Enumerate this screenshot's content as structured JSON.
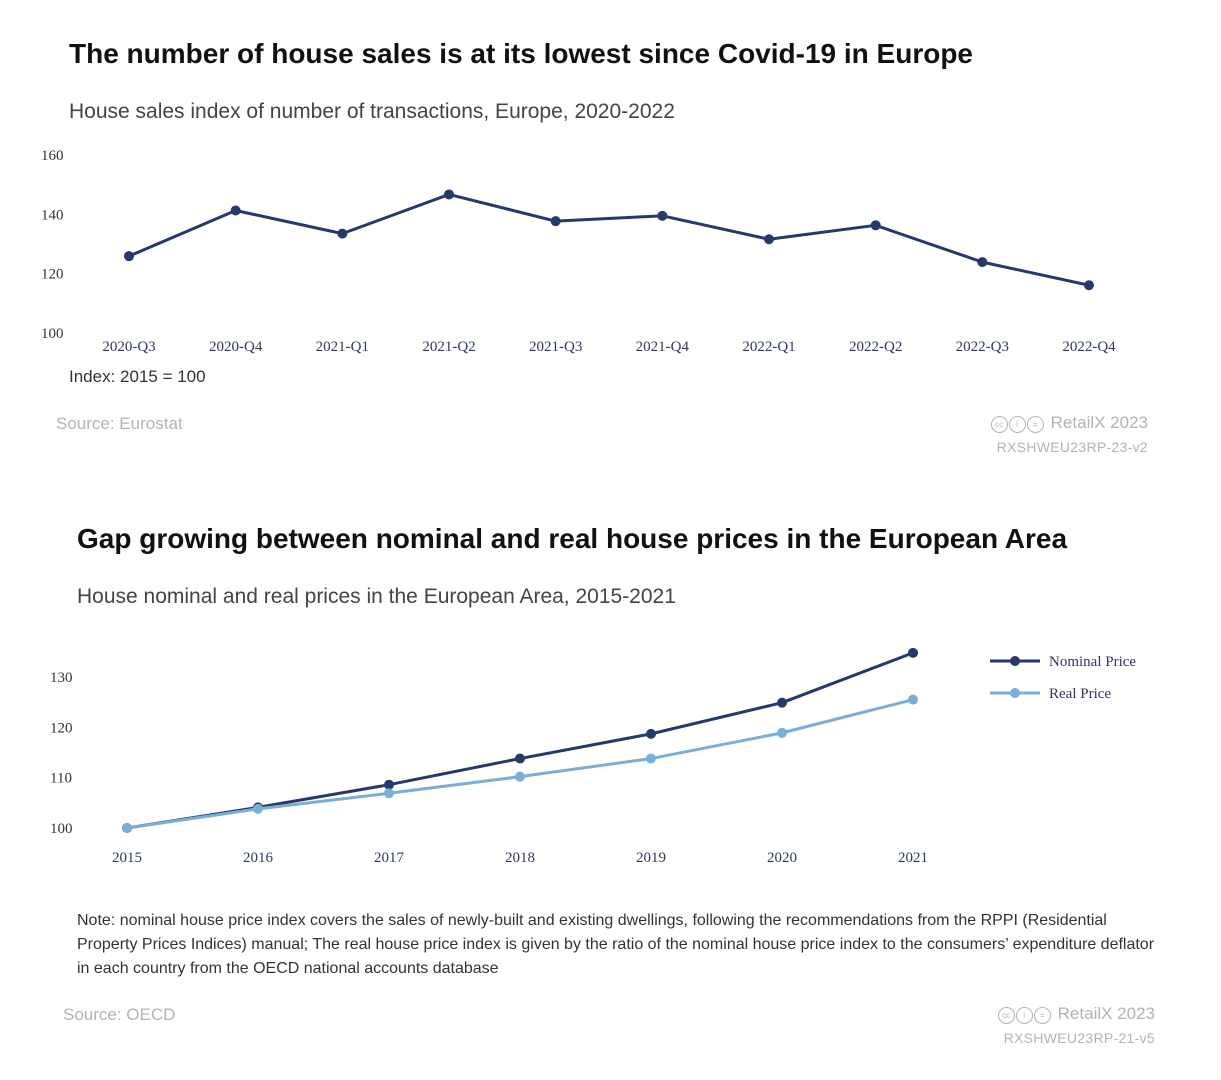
{
  "chart_data": [
    {
      "type": "line",
      "title": "The number of house sales is at its lowest since Covid-19 in Europe",
      "subtitle": "House sales index of number of transactions, Europe, 2020-2022",
      "categories": [
        "2020-Q3",
        "2020-Q4",
        "2021-Q1",
        "2021-Q2",
        "2021-Q3",
        "2021-Q4",
        "2022-Q1",
        "2022-Q2",
        "2022-Q3",
        "2022-Q4"
      ],
      "series": [
        {
          "name": "House sales index",
          "color": "#253a6b",
          "values": [
            125.9,
            141.3,
            133.5,
            146.7,
            137.7,
            139.5,
            131.6,
            136.3,
            123.9,
            116.1
          ]
        }
      ],
      "yticks": [
        "100",
        "120",
        "140",
        "160"
      ],
      "ylim": [
        100,
        160
      ],
      "note": "Index: 2015 = 100",
      "source": "Source: Eurostat",
      "brand": "RetailX 2023",
      "code": "RXSHWEU23RP-23-v2"
    },
    {
      "type": "line",
      "title": "Gap growing between nominal and real house prices in the European Area",
      "subtitle": "House nominal and real prices in the European Area, 2015-2021",
      "categories": [
        "2015",
        "2016",
        "2017",
        "2018",
        "2019",
        "2020",
        "2021"
      ],
      "series": [
        {
          "name": "Nominal Price",
          "color": "#253a6b",
          "values": [
            100,
            104.1,
            108.6,
            113.8,
            118.7,
            124.9,
            134.8
          ]
        },
        {
          "name": "Real Price",
          "color": "#7aaed6",
          "values": [
            100,
            103.8,
            106.9,
            110.2,
            113.8,
            118.9,
            125.5
          ]
        }
      ],
      "yticks": [
        "100",
        "110",
        "120",
        "130"
      ],
      "ylim": [
        100,
        130
      ],
      "note": "Note: nominal house price index covers the sales of newly-built and existing dwellings, following the recommendations from the RPPI (Residential Property Prices Indices) manual; The real house price index is given by the ratio of the nominal house price index to the consumers’ expenditure deflator in each country from the OECD national accounts database",
      "source": "Source: OECD",
      "brand": "RetailX 2023",
      "code": "RXSHWEU23RP-21-v5"
    }
  ],
  "icons": {
    "license": "creative-commons-icons",
    "license_glyphs": [
      "cc",
      "i",
      "="
    ]
  }
}
